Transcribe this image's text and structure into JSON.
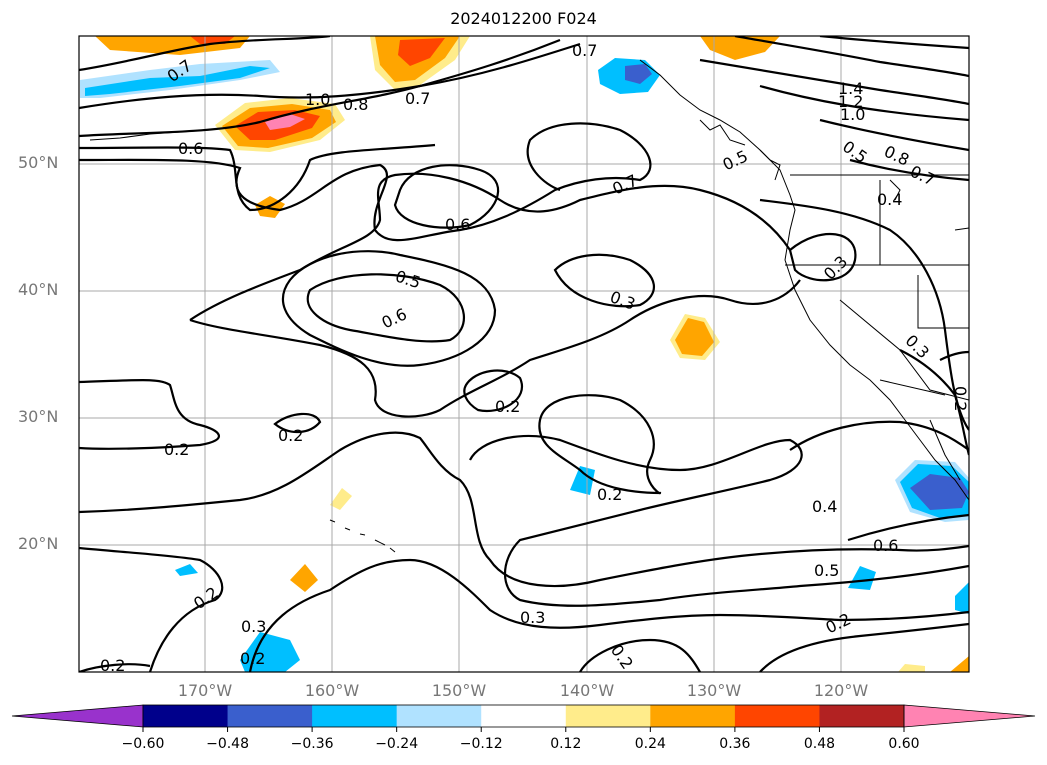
{
  "title": "2024012200 F024",
  "lat_labels": [
    "50°N",
    "40°N",
    "30°N",
    "20°N"
  ],
  "lon_labels": [
    "170°W",
    "160°W",
    "150°W",
    "140°W",
    "130°W",
    "120°W"
  ],
  "contour_labels": [
    "0.7",
    "1.0",
    "0.8",
    "0.7",
    "0.6",
    "0.7",
    "0.6",
    "0.5",
    "0.6",
    "0.3",
    "0.2",
    "0.2",
    "0.2",
    "0.2",
    "0.3",
    "0.2",
    "0.3",
    "0.2",
    "0.4",
    "0.6",
    "0.5",
    "0.2",
    "0.7",
    "1.4",
    "1.2",
    "1.0",
    "0.8",
    "0.7",
    "0.5",
    "0.5",
    "0.4",
    "0.3",
    "0.3",
    "0.2",
    "0.2",
    "0.2"
  ],
  "colorbar": {
    "ticks": [
      "−0.60",
      "−0.48",
      "−0.36",
      "−0.24",
      "−0.12",
      "0.12",
      "0.24",
      "0.36",
      "0.48",
      "0.60"
    ],
    "colors": [
      "#9932cc",
      "#00008b",
      "#3a5fcd",
      "#00bfff",
      "#b0e2ff",
      "#ffffff",
      "#ffec8b",
      "#ffa500",
      "#ff4500",
      "#b22222",
      "#ff83b2"
    ]
  },
  "fill_colors": {
    "neg_light": "#b0e2ff",
    "neg_mid": "#00bfff",
    "neg_dark": "#3a5fcd",
    "pos_light": "#ffec8b",
    "pos_mid": "#ffa500",
    "pos_dark": "#ff4500",
    "pos_max": "#ff83b2"
  }
}
